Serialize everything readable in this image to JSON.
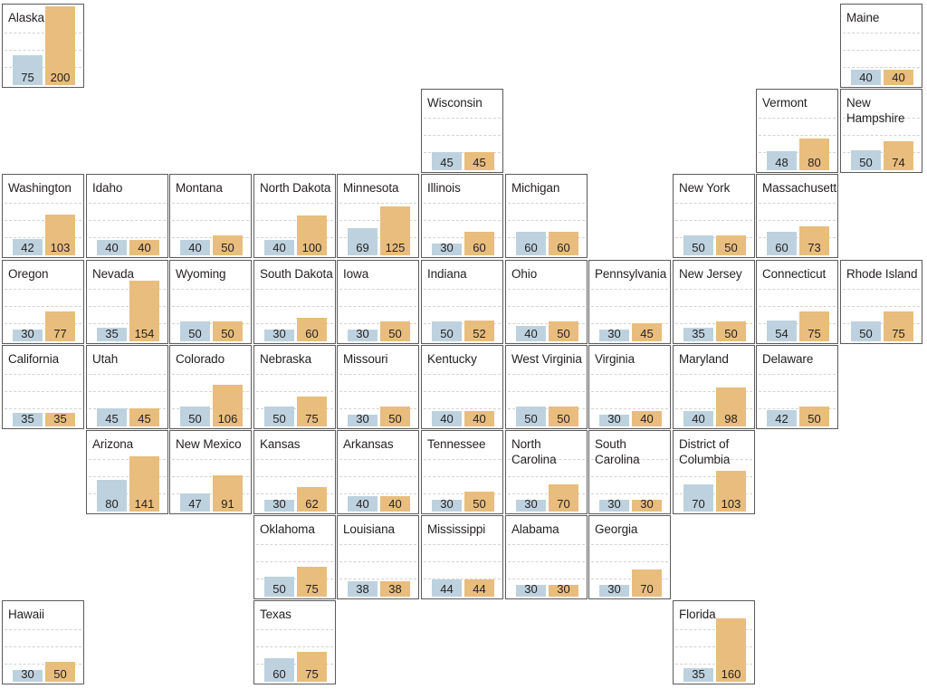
{
  "chart_data": {
    "type": "bar",
    "layout": "tile-grid map of US states",
    "series_colors": [
      "#bdd2de",
      "#e8bd7d"
    ],
    "ylim": [
      0,
      200
    ],
    "states": [
      {
        "name": "Alaska",
        "col": 0,
        "row": 0,
        "values": [
          75,
          200
        ]
      },
      {
        "name": "Maine",
        "col": 10,
        "row": 0,
        "values": [
          40,
          40
        ]
      },
      {
        "name": "Wisconsin",
        "col": 5,
        "row": 1,
        "values": [
          45,
          45
        ]
      },
      {
        "name": "Vermont",
        "col": 9,
        "row": 1,
        "values": [
          48,
          80
        ]
      },
      {
        "name": "New Hampshire",
        "col": 10,
        "row": 1,
        "values": [
          50,
          74
        ]
      },
      {
        "name": "Washington",
        "col": 0,
        "row": 2,
        "values": [
          42,
          103
        ]
      },
      {
        "name": "Idaho",
        "col": 1,
        "row": 2,
        "values": [
          40,
          40
        ]
      },
      {
        "name": "Montana",
        "col": 2,
        "row": 2,
        "values": [
          40,
          50
        ]
      },
      {
        "name": "North Dakota",
        "col": 3,
        "row": 2,
        "values": [
          40,
          100
        ]
      },
      {
        "name": "Minnesota",
        "col": 4,
        "row": 2,
        "values": [
          69,
          125
        ]
      },
      {
        "name": "Illinois",
        "col": 5,
        "row": 2,
        "values": [
          30,
          60
        ]
      },
      {
        "name": "Michigan",
        "col": 6,
        "row": 2,
        "values": [
          60,
          60
        ]
      },
      {
        "name": "New York",
        "col": 8,
        "row": 2,
        "values": [
          50,
          50
        ]
      },
      {
        "name": "Massachusetts",
        "col": 9,
        "row": 2,
        "values": [
          60,
          73
        ]
      },
      {
        "name": "Oregon",
        "col": 0,
        "row": 3,
        "values": [
          30,
          77
        ]
      },
      {
        "name": "Nevada",
        "col": 1,
        "row": 3,
        "values": [
          35,
          154
        ]
      },
      {
        "name": "Wyoming",
        "col": 2,
        "row": 3,
        "values": [
          50,
          50
        ]
      },
      {
        "name": "South Dakota",
        "col": 3,
        "row": 3,
        "values": [
          30,
          60
        ]
      },
      {
        "name": "Iowa",
        "col": 4,
        "row": 3,
        "values": [
          30,
          50
        ]
      },
      {
        "name": "Indiana",
        "col": 5,
        "row": 3,
        "values": [
          50,
          52
        ]
      },
      {
        "name": "Ohio",
        "col": 6,
        "row": 3,
        "values": [
          40,
          50
        ]
      },
      {
        "name": "Pennsylvania",
        "col": 7,
        "row": 3,
        "values": [
          30,
          45
        ]
      },
      {
        "name": "New Jersey",
        "col": 8,
        "row": 3,
        "values": [
          35,
          50
        ]
      },
      {
        "name": "Connecticut",
        "col": 9,
        "row": 3,
        "values": [
          54,
          75
        ]
      },
      {
        "name": "Rhode Island",
        "col": 10,
        "row": 3,
        "values": [
          50,
          75
        ]
      },
      {
        "name": "California",
        "col": 0,
        "row": 4,
        "values": [
          35,
          35
        ]
      },
      {
        "name": "Utah",
        "col": 1,
        "row": 4,
        "values": [
          45,
          45
        ]
      },
      {
        "name": "Colorado",
        "col": 2,
        "row": 4,
        "values": [
          50,
          106
        ]
      },
      {
        "name": "Nebraska",
        "col": 3,
        "row": 4,
        "values": [
          50,
          75
        ]
      },
      {
        "name": "Missouri",
        "col": 4,
        "row": 4,
        "values": [
          30,
          50
        ]
      },
      {
        "name": "Kentucky",
        "col": 5,
        "row": 4,
        "values": [
          40,
          40
        ]
      },
      {
        "name": "West Virginia",
        "col": 6,
        "row": 4,
        "values": [
          50,
          50
        ]
      },
      {
        "name": "Virginia",
        "col": 7,
        "row": 4,
        "values": [
          30,
          40
        ]
      },
      {
        "name": "Maryland",
        "col": 8,
        "row": 4,
        "values": [
          40,
          98
        ]
      },
      {
        "name": "Delaware",
        "col": 9,
        "row": 4,
        "values": [
          42,
          50
        ]
      },
      {
        "name": "Arizona",
        "col": 1,
        "row": 5,
        "values": [
          80,
          141
        ]
      },
      {
        "name": "New Mexico",
        "col": 2,
        "row": 5,
        "values": [
          47,
          91
        ]
      },
      {
        "name": "Kansas",
        "col": 3,
        "row": 5,
        "values": [
          30,
          62
        ]
      },
      {
        "name": "Arkansas",
        "col": 4,
        "row": 5,
        "values": [
          40,
          40
        ]
      },
      {
        "name": "Tennessee",
        "col": 5,
        "row": 5,
        "values": [
          30,
          50
        ]
      },
      {
        "name": "North Carolina",
        "col": 6,
        "row": 5,
        "values": [
          30,
          70
        ]
      },
      {
        "name": "South Carolina",
        "col": 7,
        "row": 5,
        "values": [
          30,
          30
        ]
      },
      {
        "name": "District of Columbia",
        "col": 8,
        "row": 5,
        "values": [
          70,
          103
        ]
      },
      {
        "name": "Oklahoma",
        "col": 3,
        "row": 6,
        "values": [
          50,
          75
        ]
      },
      {
        "name": "Louisiana",
        "col": 4,
        "row": 6,
        "values": [
          38,
          38
        ]
      },
      {
        "name": "Mississippi",
        "col": 5,
        "row": 6,
        "values": [
          44,
          44
        ]
      },
      {
        "name": "Alabama",
        "col": 6,
        "row": 6,
        "values": [
          30,
          30
        ]
      },
      {
        "name": "Georgia",
        "col": 7,
        "row": 6,
        "values": [
          30,
          70
        ]
      },
      {
        "name": "Hawaii",
        "col": 0,
        "row": 7,
        "values": [
          30,
          50
        ]
      },
      {
        "name": "Texas",
        "col": 3,
        "row": 7,
        "values": [
          60,
          75
        ]
      },
      {
        "name": "Florida",
        "col": 8,
        "row": 7,
        "values": [
          35,
          160
        ]
      }
    ]
  }
}
